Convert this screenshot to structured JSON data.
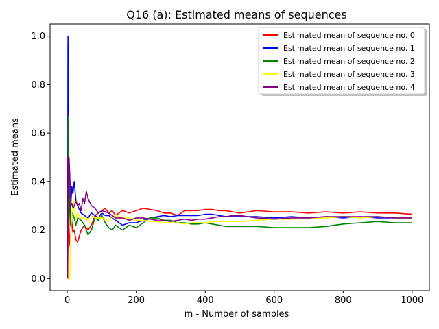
{
  "chart_data": {
    "type": "line",
    "title": "Q16 (a): Estimated means of sequences",
    "xlabel": "m - Number of samples",
    "ylabel": "Estimated means",
    "xlim": [
      -50,
      1050
    ],
    "ylim": [
      -0.05,
      1.05
    ],
    "xticks": [
      0,
      200,
      400,
      600,
      800,
      1000
    ],
    "yticks": [
      0.0,
      0.2,
      0.4,
      0.6,
      0.8,
      1.0
    ],
    "xtick_labels": [
      "0",
      "200",
      "400",
      "600",
      "800",
      "1000"
    ],
    "ytick_labels": [
      "0.0",
      "0.2",
      "0.4",
      "0.6",
      "0.8",
      "1.0"
    ],
    "grid": false,
    "legend_position": "top-right",
    "series": [
      {
        "name": "Estimated mean of sequence no. 0",
        "color": "#ff0000",
        "x": [
          1,
          3,
          5,
          8,
          12,
          16,
          20,
          25,
          30,
          40,
          50,
          60,
          70,
          80,
          90,
          100,
          110,
          120,
          130,
          140,
          150,
          160,
          180,
          200,
          220,
          240,
          260,
          280,
          300,
          320,
          340,
          360,
          380,
          400,
          420,
          440,
          460,
          480,
          500,
          550,
          600,
          650,
          700,
          750,
          800,
          850,
          900,
          950,
          1000
        ],
        "y": [
          0.0,
          0.33,
          0.2,
          0.13,
          0.25,
          0.19,
          0.2,
          0.16,
          0.15,
          0.2,
          0.22,
          0.2,
          0.22,
          0.26,
          0.27,
          0.28,
          0.29,
          0.27,
          0.28,
          0.26,
          0.27,
          0.28,
          0.27,
          0.28,
          0.29,
          0.285,
          0.28,
          0.27,
          0.27,
          0.26,
          0.28,
          0.28,
          0.28,
          0.285,
          0.285,
          0.28,
          0.28,
          0.275,
          0.27,
          0.28,
          0.275,
          0.275,
          0.27,
          0.275,
          0.27,
          0.275,
          0.27,
          0.27,
          0.265
        ]
      },
      {
        "name": "Estimated mean of sequence no. 1",
        "color": "#0000ff",
        "x": [
          1,
          2,
          4,
          6,
          8,
          10,
          13,
          16,
          20,
          25,
          30,
          40,
          50,
          60,
          70,
          80,
          90,
          100,
          110,
          120,
          140,
          160,
          180,
          200,
          220,
          240,
          260,
          280,
          300,
          320,
          340,
          360,
          380,
          400,
          420,
          440,
          460,
          480,
          500,
          550,
          600,
          650,
          700,
          750,
          800,
          850,
          900,
          950,
          1000
        ],
        "y": [
          0.0,
          1.0,
          0.5,
          0.33,
          0.25,
          0.3,
          0.38,
          0.35,
          0.4,
          0.32,
          0.3,
          0.27,
          0.26,
          0.25,
          0.27,
          0.26,
          0.25,
          0.27,
          0.26,
          0.26,
          0.24,
          0.22,
          0.23,
          0.23,
          0.24,
          0.25,
          0.255,
          0.26,
          0.255,
          0.26,
          0.26,
          0.26,
          0.26,
          0.265,
          0.265,
          0.26,
          0.255,
          0.255,
          0.255,
          0.255,
          0.25,
          0.255,
          0.25,
          0.255,
          0.25,
          0.255,
          0.25,
          0.25,
          0.25
        ]
      },
      {
        "name": "Estimated mean of sequence no. 2",
        "color": "#008000",
        "x": [
          1,
          3,
          5,
          7,
          9,
          12,
          15,
          20,
          25,
          30,
          40,
          50,
          60,
          70,
          80,
          90,
          100,
          110,
          120,
          130,
          140,
          150,
          160,
          180,
          200,
          220,
          240,
          260,
          280,
          300,
          320,
          340,
          360,
          380,
          400,
          420,
          440,
          460,
          480,
          500,
          550,
          600,
          650,
          700,
          750,
          800,
          850,
          900,
          950,
          1000
        ],
        "y": [
          0.0,
          0.67,
          0.4,
          0.29,
          0.22,
          0.25,
          0.27,
          0.25,
          0.22,
          0.25,
          0.24,
          0.22,
          0.18,
          0.2,
          0.25,
          0.24,
          0.26,
          0.23,
          0.21,
          0.2,
          0.22,
          0.21,
          0.2,
          0.22,
          0.21,
          0.23,
          0.25,
          0.25,
          0.24,
          0.24,
          0.23,
          0.23,
          0.225,
          0.225,
          0.23,
          0.225,
          0.22,
          0.215,
          0.215,
          0.215,
          0.215,
          0.21,
          0.21,
          0.21,
          0.215,
          0.225,
          0.23,
          0.235,
          0.23,
          0.23
        ]
      },
      {
        "name": "Estimated mean of sequence no. 3",
        "color": "#ffff00",
        "x": [
          1,
          3,
          5,
          7,
          10,
          14,
          18,
          22,
          26,
          30,
          40,
          50,
          60,
          70,
          80,
          90,
          100,
          120,
          140,
          160,
          180,
          200,
          220,
          240,
          260,
          280,
          300,
          320,
          340,
          360,
          380,
          400,
          420,
          440,
          460,
          480,
          500,
          550,
          600,
          650,
          700,
          750,
          800,
          850,
          900,
          950,
          1000
        ],
        "y": [
          0.0,
          0.0,
          0.0,
          0.0,
          0.2,
          0.29,
          0.33,
          0.27,
          0.25,
          0.27,
          0.25,
          0.25,
          0.24,
          0.26,
          0.25,
          0.25,
          0.25,
          0.24,
          0.26,
          0.25,
          0.25,
          0.24,
          0.24,
          0.235,
          0.235,
          0.23,
          0.23,
          0.23,
          0.225,
          0.23,
          0.23,
          0.23,
          0.235,
          0.235,
          0.235,
          0.235,
          0.235,
          0.24,
          0.245,
          0.245,
          0.25,
          0.25,
          0.255,
          0.25,
          0.255,
          0.25,
          0.25
        ]
      },
      {
        "name": "Estimated mean of sequence no. 4",
        "color": "#800080",
        "x": [
          1,
          2,
          3,
          5,
          7,
          10,
          13,
          17,
          20,
          25,
          30,
          35,
          40,
          45,
          50,
          55,
          60,
          70,
          80,
          90,
          100,
          120,
          140,
          160,
          180,
          200,
          220,
          240,
          260,
          280,
          300,
          320,
          340,
          360,
          380,
          400,
          420,
          440,
          460,
          480,
          500,
          550,
          600,
          650,
          700,
          750,
          800,
          850,
          900,
          950,
          1000
        ],
        "y": [
          0.0,
          0.5,
          0.33,
          0.5,
          0.43,
          0.3,
          0.31,
          0.29,
          0.3,
          0.32,
          0.3,
          0.31,
          0.28,
          0.33,
          0.31,
          0.36,
          0.33,
          0.3,
          0.29,
          0.27,
          0.28,
          0.27,
          0.25,
          0.25,
          0.24,
          0.25,
          0.25,
          0.245,
          0.24,
          0.24,
          0.235,
          0.24,
          0.245,
          0.24,
          0.245,
          0.245,
          0.25,
          0.255,
          0.255,
          0.26,
          0.26,
          0.25,
          0.245,
          0.25,
          0.25,
          0.255,
          0.255,
          0.255,
          0.255,
          0.25,
          0.25
        ]
      }
    ]
  }
}
